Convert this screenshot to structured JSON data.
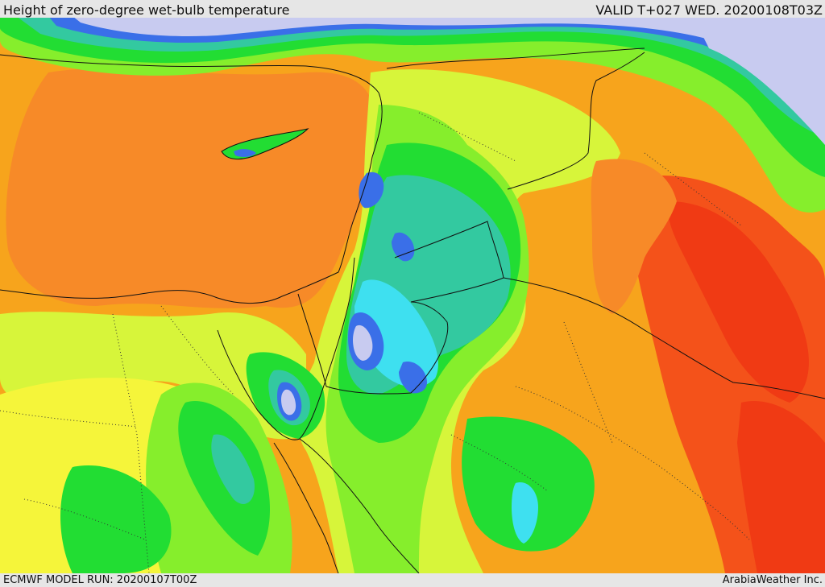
{
  "header": {
    "title": "Height of zero-degree wet-bulb temperature",
    "valid": "VALID T+027 WED. 20200108T03Z"
  },
  "footer": {
    "model_run": "ECMWF MODEL RUN: 20200107T00Z",
    "credit": "ArabiaWeather Inc."
  },
  "palette": {
    "lavender": "#c8cbf0",
    "blue": "#3a6fe8",
    "cyan": "#3ee0f0",
    "teal": "#33c9a0",
    "green": "#22dd33",
    "light_green": "#86ee2c",
    "yellow_green": "#d7f53a",
    "yellow": "#f5f53a",
    "orange": "#f7a41c",
    "dark_orange": "#f78a28",
    "red_orange": "#f4521a",
    "red": "#f03a14"
  }
}
